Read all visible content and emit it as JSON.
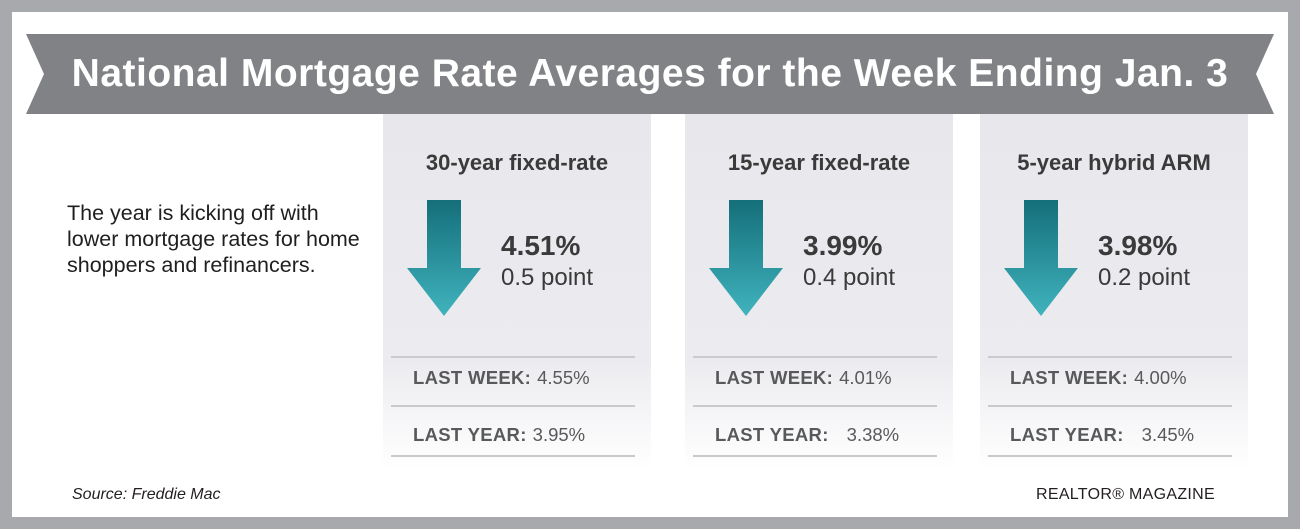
{
  "title": "National Mortgage Rate Averages for the Week Ending Jan. 3",
  "intro": "The year is kicking off with lower mortgage rates for home shoppers and refinancers.",
  "source": "Source: Freddie Mac",
  "brand": "REALTOR® MAGAZINE",
  "colors": {
    "outer_border": "#a7a9ac",
    "banner": "#808285",
    "card_background": "#e8e8ed",
    "arrow_top": "#146f7a",
    "arrow_bottom": "#40b3bd",
    "text_dark": "#3a3a3a",
    "text_muted": "#58595b"
  },
  "cards": [
    {
      "title": "30-year fixed-rate",
      "direction_icon": "down-arrow-icon",
      "rate": "4.51%",
      "change": "0.5 point",
      "last_week_label": "LAST WEEK:",
      "last_week_value": "4.55%",
      "last_year_label": "LAST YEAR:",
      "last_year_value": "3.95%"
    },
    {
      "title": "15-year fixed-rate",
      "direction_icon": "down-arrow-icon",
      "rate": "3.99%",
      "change": "0.4 point",
      "last_week_label": "LAST WEEK:",
      "last_week_value": "4.01%",
      "last_year_label": "LAST YEAR:",
      "last_year_value": "3.38%"
    },
    {
      "title": "5-year hybrid ARM",
      "direction_icon": "down-arrow-icon",
      "rate": "3.98%",
      "change": "0.2 point",
      "last_week_label": "LAST WEEK:",
      "last_week_value": "4.00%",
      "last_year_label": "LAST YEAR:",
      "last_year_value": "3.45%"
    }
  ]
}
